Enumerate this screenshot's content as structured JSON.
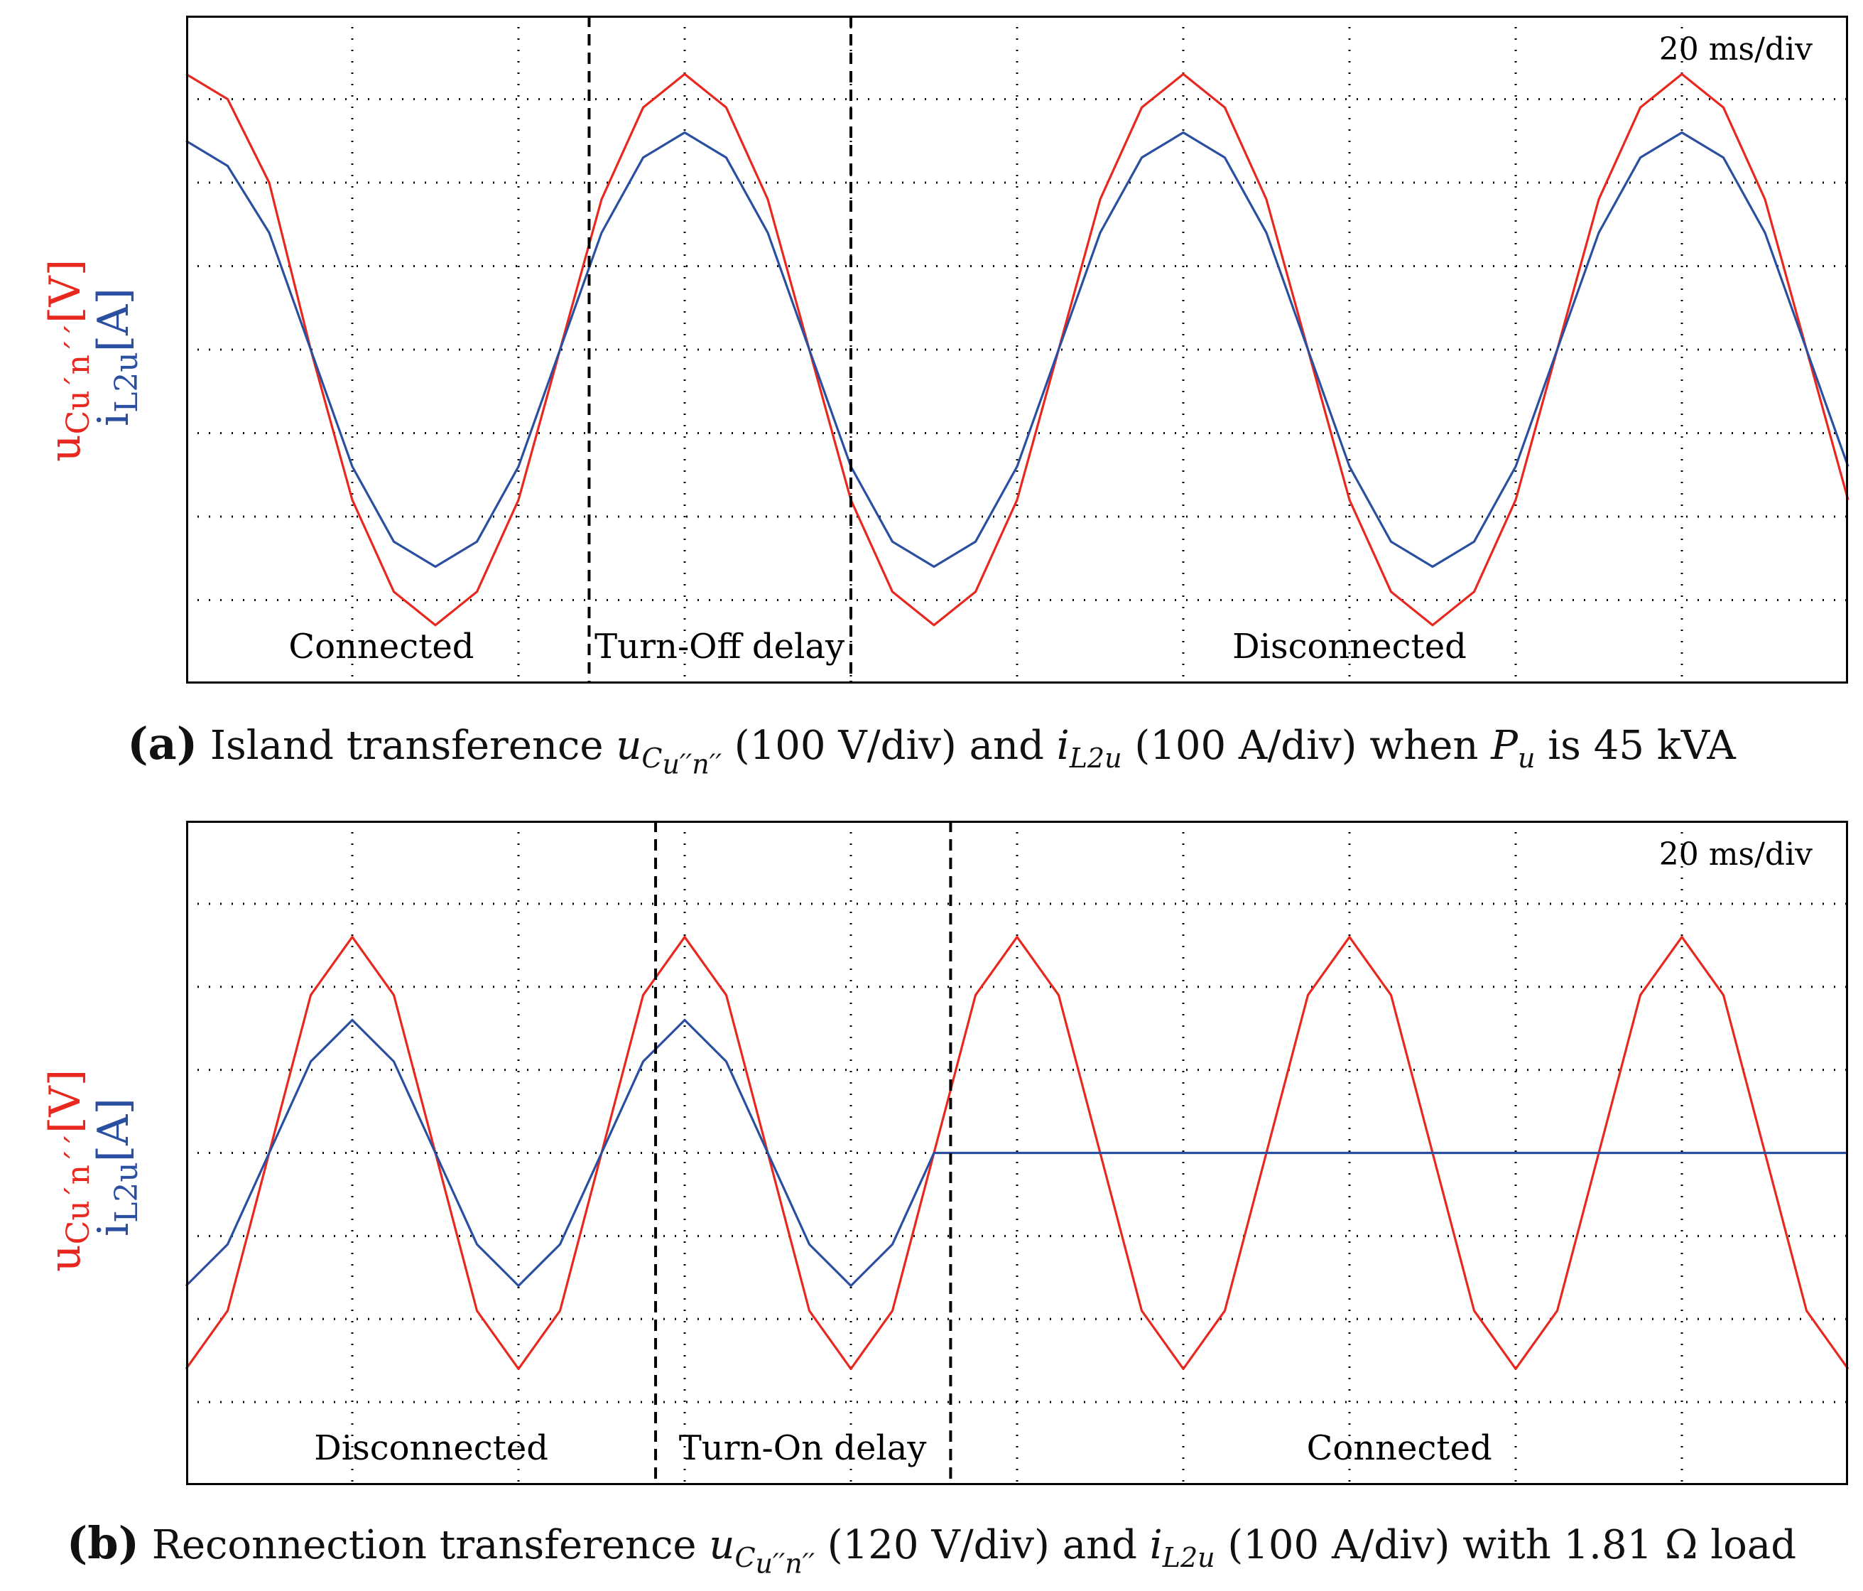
{
  "colors": {
    "voltage": "#e8281e",
    "current": "#2b4fa0",
    "grid": "#000000"
  },
  "chart_data": [
    {
      "type": "line",
      "panel": "a",
      "timebase": "20 ms/div",
      "ylabel_voltage": "u",
      "ylabel_voltage_sub": "Cu´n´´",
      "ylabel_voltage_unit": "[V]",
      "ylabel_current": "i",
      "ylabel_current_sub": "L2u",
      "ylabel_current_unit": "[A]",
      "xlim": [
        0,
        200
      ],
      "ylim": [
        -4,
        4
      ],
      "x_grid_divisions": 10,
      "y_grid_divisions": 8,
      "markers": [
        {
          "t": 48.5,
          "style": "dashed"
        },
        {
          "t": 80.0,
          "style": "dashed"
        }
      ],
      "regions": [
        {
          "label": "Connected",
          "t": 23.5
        },
        {
          "label": "Turn-Off delay",
          "t": 64.2
        },
        {
          "label": "Disconnected",
          "t": 140
        }
      ],
      "series": [
        {
          "points": [
            [
              0,
              3.3
            ],
            [
              5,
              3.0
            ],
            [
              10,
              2.0
            ],
            [
              15,
              0.0
            ],
            [
              20,
              -1.8
            ],
            [
              25,
              -2.9
            ],
            [
              30,
              -3.3
            ],
            [
              35,
              -2.9
            ],
            [
              40,
              -1.8
            ],
            [
              45,
              0.0
            ],
            [
              50,
              1.8
            ],
            [
              55,
              2.9
            ],
            [
              60,
              3.3
            ],
            [
              65,
              2.9
            ],
            [
              70,
              1.8
            ],
            [
              75,
              0.0
            ],
            [
              80,
              -1.8
            ],
            [
              85,
              -2.9
            ],
            [
              90,
              -3.3
            ],
            [
              95,
              -2.9
            ],
            [
              100,
              -1.8
            ],
            [
              105,
              0.0
            ],
            [
              110,
              1.8
            ],
            [
              115,
              2.9
            ],
            [
              120,
              3.3
            ],
            [
              125,
              2.9
            ],
            [
              130,
              1.8
            ],
            [
              135,
              0.0
            ],
            [
              140,
              -1.8
            ],
            [
              145,
              -2.9
            ],
            [
              150,
              -3.3
            ],
            [
              155,
              -2.9
            ],
            [
              160,
              -1.8
            ],
            [
              165,
              0.0
            ],
            [
              170,
              1.8
            ],
            [
              175,
              2.9
            ],
            [
              180,
              3.3
            ],
            [
              185,
              2.9
            ],
            [
              190,
              1.8
            ],
            [
              195,
              0.0
            ],
            [
              200,
              -1.8
            ]
          ]
        },
        {
          "points": [
            [
              0,
              2.5
            ],
            [
              5,
              2.2
            ],
            [
              10,
              1.4
            ],
            [
              15,
              0.0
            ],
            [
              20,
              -1.4
            ],
            [
              25,
              -2.3
            ],
            [
              30,
              -2.6
            ],
            [
              35,
              -2.3
            ],
            [
              40,
              -1.4
            ],
            [
              45,
              0.0
            ],
            [
              50,
              1.4
            ],
            [
              55,
              2.3
            ],
            [
              60,
              2.6
            ],
            [
              65,
              2.3
            ],
            [
              70,
              1.4
            ],
            [
              75,
              0.0
            ],
            [
              80,
              -1.4
            ],
            [
              85,
              -2.3
            ],
            [
              90,
              -2.6
            ],
            [
              95,
              -2.3
            ],
            [
              100,
              -1.4
            ],
            [
              105,
              0.0
            ],
            [
              110,
              1.4
            ],
            [
              115,
              2.3
            ],
            [
              120,
              2.6
            ],
            [
              125,
              2.3
            ],
            [
              130,
              1.4
            ],
            [
              135,
              0.0
            ],
            [
              140,
              -1.4
            ],
            [
              145,
              -2.3
            ],
            [
              150,
              -2.6
            ],
            [
              155,
              -2.3
            ],
            [
              160,
              -1.4
            ],
            [
              165,
              0.0
            ],
            [
              170,
              1.4
            ],
            [
              175,
              2.3
            ],
            [
              180,
              2.6
            ],
            [
              185,
              2.3
            ],
            [
              190,
              1.4
            ],
            [
              195,
              0.0
            ],
            [
              200,
              -1.4
            ]
          ]
        }
      ]
    },
    {
      "type": "line",
      "panel": "b",
      "timebase": "20 ms/div",
      "ylabel_voltage": "u",
      "ylabel_voltage_sub": "Cu´n´´",
      "ylabel_voltage_unit": "[V]",
      "ylabel_current": "i",
      "ylabel_current_sub": "L2u",
      "ylabel_current_unit": "[A]",
      "xlim": [
        0,
        200
      ],
      "ylim": [
        -4,
        4
      ],
      "x_grid_divisions": 10,
      "y_grid_divisions": 8,
      "markers": [
        {
          "t": 56.5,
          "style": "dashed"
        },
        {
          "t": 92.0,
          "style": "dashed"
        }
      ],
      "regions": [
        {
          "label": "Disconnected",
          "t": 29.5
        },
        {
          "label": "Turn-On delay",
          "t": 74.2
        },
        {
          "label": "Connected",
          "t": 146
        }
      ],
      "series": [
        {
          "points": [
            [
              0,
              -2.6
            ],
            [
              5,
              -1.9
            ],
            [
              10,
              0.0
            ],
            [
              15,
              1.9
            ],
            [
              20,
              2.6
            ],
            [
              25,
              1.9
            ],
            [
              30,
              0.0
            ],
            [
              35,
              -1.9
            ],
            [
              40,
              -2.6
            ],
            [
              45,
              -1.9
            ],
            [
              50,
              0.0
            ],
            [
              55,
              1.9
            ],
            [
              60,
              2.6
            ],
            [
              65,
              1.9
            ],
            [
              70,
              0.0
            ],
            [
              75,
              -1.9
            ],
            [
              80,
              -2.6
            ],
            [
              85,
              -1.9
            ],
            [
              90,
              0.0
            ],
            [
              95,
              1.9
            ],
            [
              100,
              2.6
            ],
            [
              105,
              1.9
            ],
            [
              110,
              0.0
            ],
            [
              115,
              -1.9
            ],
            [
              120,
              -2.6
            ],
            [
              125,
              -1.9
            ],
            [
              130,
              0.0
            ],
            [
              135,
              1.9
            ],
            [
              140,
              2.6
            ],
            [
              145,
              1.9
            ],
            [
              150,
              0.0
            ],
            [
              155,
              -1.9
            ],
            [
              160,
              -2.6
            ],
            [
              165,
              -1.9
            ],
            [
              170,
              0.0
            ],
            [
              175,
              1.9
            ],
            [
              180,
              2.6
            ],
            [
              185,
              1.9
            ],
            [
              190,
              0.0
            ],
            [
              195,
              -1.9
            ],
            [
              200,
              -2.6
            ]
          ]
        },
        {
          "points": [
            [
              0,
              -1.6
            ],
            [
              5,
              -1.1
            ],
            [
              10,
              0.0
            ],
            [
              15,
              1.1
            ],
            [
              20,
              1.6
            ],
            [
              25,
              1.1
            ],
            [
              30,
              0.0
            ],
            [
              35,
              -1.1
            ],
            [
              40,
              -1.6
            ],
            [
              45,
              -1.1
            ],
            [
              50,
              0.0
            ],
            [
              55,
              1.1
            ],
            [
              60,
              1.6
            ],
            [
              65,
              1.1
            ],
            [
              70,
              0.0
            ],
            [
              75,
              -1.1
            ],
            [
              80,
              -1.6
            ],
            [
              85,
              -1.1
            ],
            [
              90,
              0.0
            ],
            [
              95,
              0.0
            ],
            [
              100,
              0.0
            ],
            [
              105,
              0.0
            ],
            [
              110,
              0.0
            ],
            [
              115,
              0.0
            ],
            [
              120,
              0.0
            ],
            [
              125,
              0.0
            ],
            [
              130,
              0.0
            ],
            [
              135,
              0.0
            ],
            [
              140,
              0.0
            ],
            [
              145,
              0.0
            ],
            [
              150,
              0.0
            ],
            [
              155,
              0.0
            ],
            [
              160,
              0.0
            ],
            [
              165,
              0.0
            ],
            [
              170,
              0.0
            ],
            [
              175,
              0.0
            ],
            [
              180,
              0.0
            ],
            [
              185,
              0.0
            ],
            [
              190,
              0.0
            ],
            [
              195,
              0.0
            ],
            [
              200,
              0.0
            ]
          ]
        }
      ]
    }
  ],
  "captions": {
    "a": {
      "tag": "(a)",
      "t1": " Island transference ",
      "u": "u",
      "u_sub": "C",
      "u_subsub": "u′′n′′",
      "t2": " (100 V/div) and ",
      "i": "i",
      "i_sub": "L2u",
      "t3": " (100 A/div) when ",
      "p": "P",
      "p_sub": "u",
      "t4": " is 45 kVA"
    },
    "b": {
      "tag": "(b)",
      "t1": " Reconnection transference ",
      "u": "u",
      "u_sub": "C",
      "u_subsub": "u′′n′′",
      "t2": " (120 V/div) and ",
      "i": "i",
      "i_sub": "L2u",
      "t3": " (100 A/div) with 1.81 Ω load"
    }
  }
}
